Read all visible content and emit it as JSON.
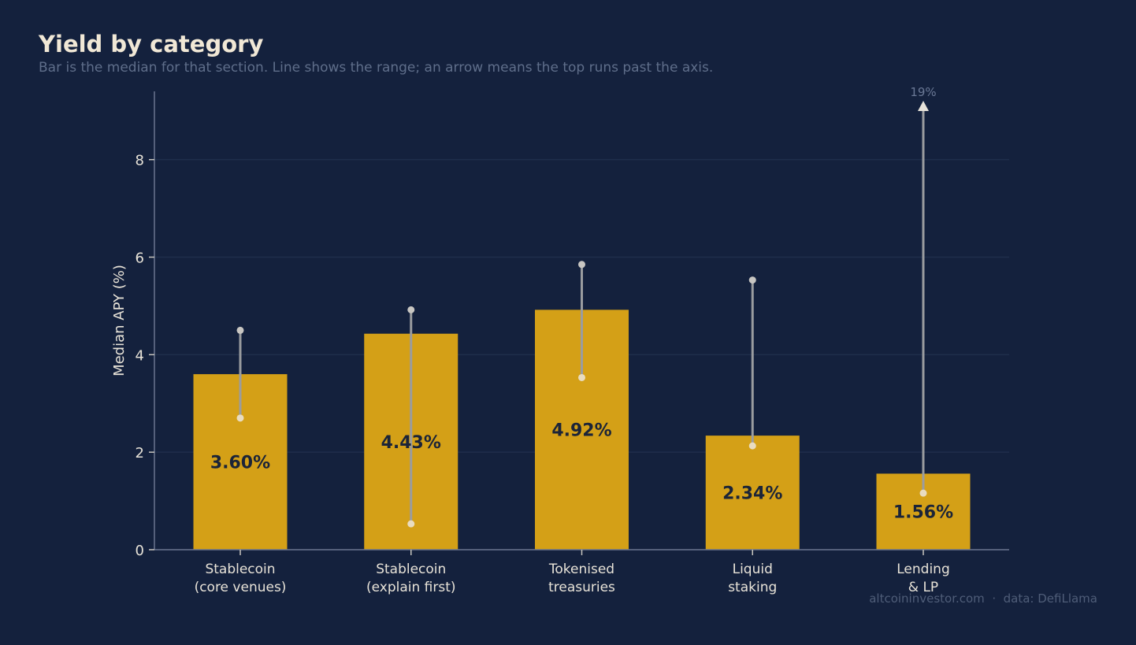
{
  "title": "Yield by category",
  "subtitle": "Bar is the median for that section. Line shows the range; an arrow means the top runs past the axis.",
  "source": "altcoininvestor.com  ·  data: DefiLlama",
  "colors": {
    "background": "#14213d",
    "bar": "#d4a017",
    "range_line": "#9a9c9f",
    "axis": "#6b7690",
    "grid": "#1f2e4b"
  },
  "chart_data": {
    "type": "bar",
    "categories": [
      [
        "Stablecoin",
        "(core venues)"
      ],
      [
        "Stablecoin",
        "(explain first)"
      ],
      [
        "Tokenised",
        "treasuries"
      ],
      [
        "Liquid",
        "staking"
      ],
      [
        "Lending",
        "& LP"
      ]
    ],
    "values": [
      3.6,
      4.43,
      4.92,
      2.34,
      1.56
    ],
    "value_labels": [
      "3.60%",
      "4.43%",
      "4.92%",
      "2.34%",
      "1.56%"
    ],
    "range_low": [
      2.7,
      0.53,
      3.53,
      2.13,
      1.16
    ],
    "range_high": [
      4.5,
      4.92,
      5.85,
      5.53,
      19
    ],
    "range_overflow": [
      false,
      false,
      false,
      false,
      true
    ],
    "overflow_label": "19%",
    "ylabel": "Median APY (%)",
    "ylim": [
      0,
      9.4
    ],
    "yticks": [
      0,
      2,
      4,
      6,
      8
    ],
    "grid": true
  }
}
